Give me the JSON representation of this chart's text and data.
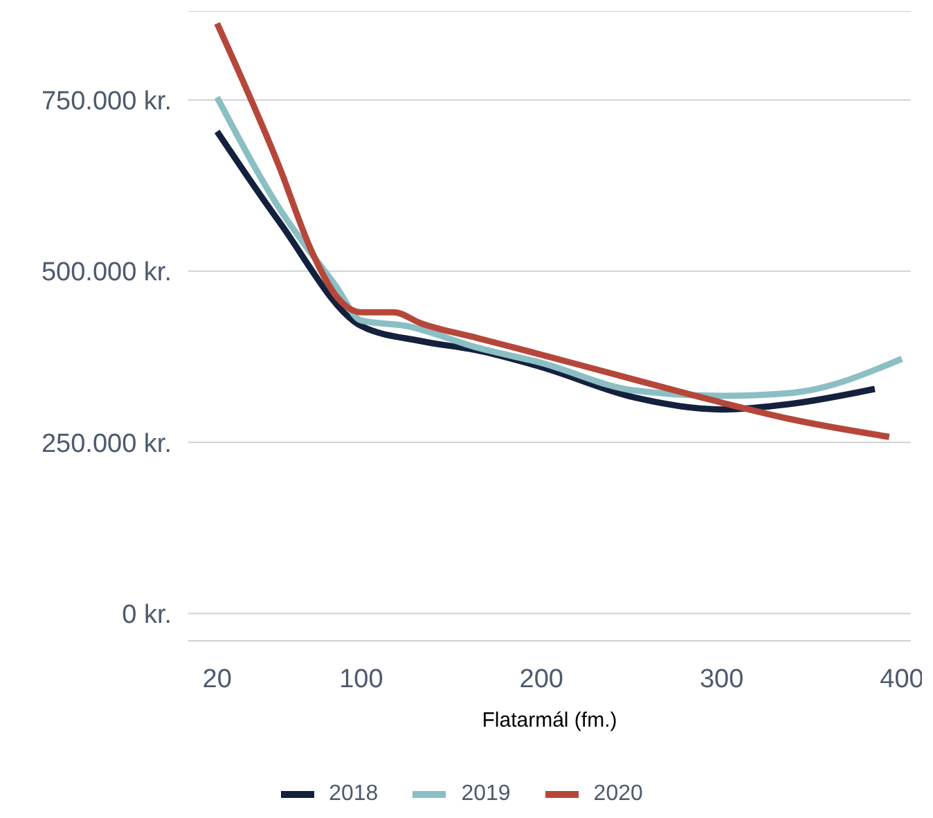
{
  "chart_data": {
    "type": "line",
    "xlabel": "Flatarmál (fm.)",
    "xlim": [
      4,
      405
    ],
    "xticks": [
      20,
      100,
      200,
      300,
      400
    ],
    "ylim": [
      -40000,
      880000
    ],
    "yticks": [
      {
        "value": 0,
        "label": "0 kr."
      },
      {
        "value": 250000,
        "label": "250.000 kr."
      },
      {
        "value": 500000,
        "label": "500.000 kr."
      },
      {
        "value": 750000,
        "label": "750.000 kr."
      }
    ],
    "grid": "y",
    "legend": "bottom",
    "marker": "none",
    "line_style": "solid",
    "series": [
      {
        "name": "2018",
        "color": "#14213d",
        "x": [
          20,
          54,
          100,
          133,
          165,
          200,
          251,
          300,
          338,
          385
        ],
        "values": [
          704000,
          574000,
          420000,
          398000,
          384000,
          360000,
          316000,
          298000,
          306000,
          328000
        ]
      },
      {
        "name": "2019",
        "color": "#8bbfc4",
        "x": [
          20,
          54,
          86,
          100,
          125,
          165,
          200,
          251,
          300,
          338,
          400
        ],
        "values": [
          754000,
          594000,
          478000,
          428000,
          420000,
          388000,
          366000,
          326000,
          318000,
          322000,
          372000
        ]
      },
      {
        "name": "2020",
        "color": "#b5473a",
        "x": [
          20,
          54,
          73,
          86,
          100,
          118,
          133,
          165,
          200,
          251,
          300,
          338,
          393
        ],
        "values": [
          862000,
          656000,
          526000,
          464000,
          440000,
          440000,
          424000,
          402000,
          378000,
          342000,
          308000,
          284000,
          258000
        ]
      }
    ]
  }
}
